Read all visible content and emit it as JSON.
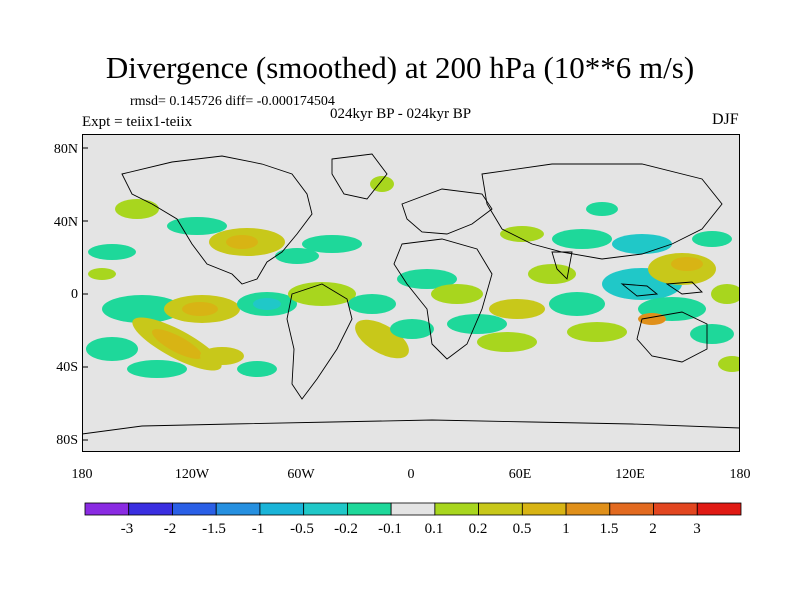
{
  "plot": {
    "title": "Divergence (smoothed) at 200 hPa (10**6 m/s)",
    "stats": "rmsd= 0.145726 diff= -0.000174504",
    "expt": "Expt = teiix1-teiix",
    "subtitle": "024kyr BP - 024kyr BP",
    "season": "DJF"
  },
  "axes": {
    "lat_ticks": [
      "80N",
      "40N",
      "0",
      "40S",
      "80S"
    ],
    "lon_ticks": [
      "180",
      "120W",
      "60W",
      "0",
      "60E",
      "120E",
      "180"
    ]
  },
  "colorbar": {
    "colors": [
      "#8a2be2",
      "#3a2ee0",
      "#2a5fe6",
      "#2690e0",
      "#1ab4d8",
      "#20c8c8",
      "#1ed89a",
      "#e4e4e4",
      "#a8d61e",
      "#c8c81a",
      "#d8b414",
      "#e0901a",
      "#e26a20",
      "#e24620",
      "#e01a14"
    ],
    "labels": [
      "-3",
      "-2",
      "-1.5",
      "-1",
      "-0.5",
      "-0.2",
      "-0.1",
      "0.1",
      "0.2",
      "0.5",
      "1",
      "1.5",
      "2",
      "3"
    ]
  },
  "colors": {
    "background": "#e4e4e4",
    "coast": "#000000",
    "neg_light": "#1ed89a",
    "neg_mid": "#20c8c8",
    "pos_light": "#a8d61e",
    "pos_mid": "#c8c81a",
    "pos_strong": "#d8b414",
    "pos_peak": "#e0901a"
  }
}
